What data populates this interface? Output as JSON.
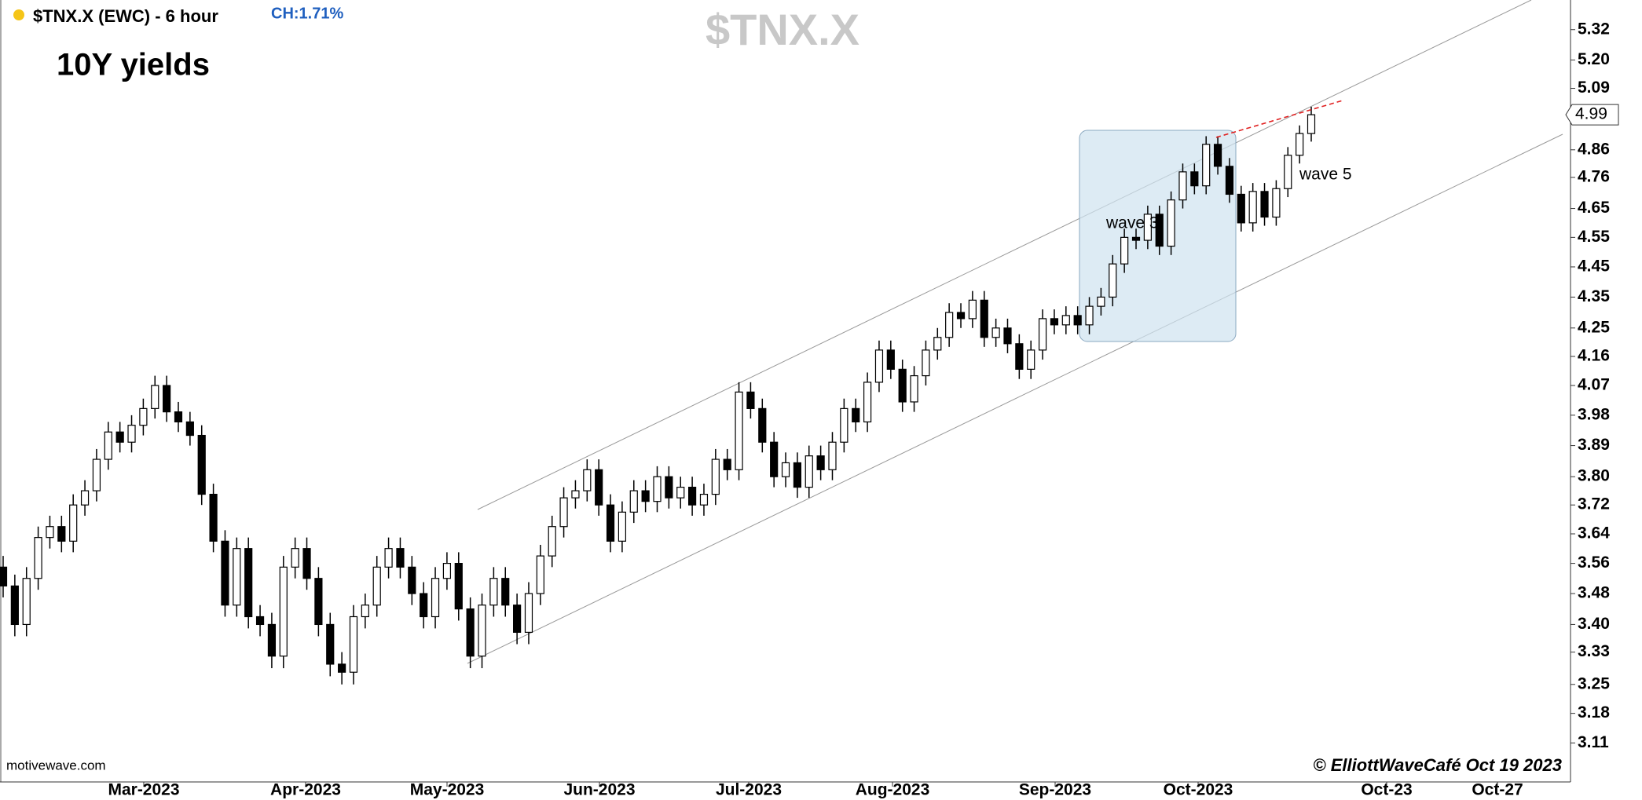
{
  "chart_data": {
    "type": "candlestick",
    "symbol": "$TNX.X (EWC) - 6 hour",
    "change": "CH:1.71%",
    "watermark": "$TNX.X",
    "title": "10Y yields",
    "annotations": [
      "wave 3",
      "wave 5"
    ],
    "source": "motivewave.com",
    "credit": "© ElliottWaveCafé Oct 19 2023",
    "last_price": 4.99,
    "xtick_labels": [
      "Mar-2023",
      "Apr-2023",
      "May-2023",
      "Jun-2023",
      "Jul-2023",
      "Aug-2023",
      "Sep-2023",
      "Oct-2023",
      "Oct-23",
      "Oct-27"
    ],
    "log_scale": true,
    "ylim": [
      3.02,
      5.44
    ],
    "yticks": [
      3.11,
      3.18,
      3.25,
      3.33,
      {
        "value": 3.4,
        "label": "3.40"
      },
      3.48,
      3.56,
      3.64,
      3.72,
      {
        "value": 3.8,
        "label": "3.80"
      },
      3.89,
      3.98,
      4.07,
      4.16,
      4.25,
      4.35,
      4.45,
      4.55,
      4.65,
      4.76,
      4.86,
      5.09,
      {
        "value": 5.2,
        "label": "5.20"
      },
      5.32
    ],
    "up_color": "#ffffff",
    "down_color": "#000000",
    "open": [
      3.55,
      3.5,
      3.4,
      3.52,
      3.63,
      3.66,
      3.62,
      3.72,
      3.76,
      3.85,
      3.93,
      3.9,
      3.95,
      4.0,
      4.07,
      3.99,
      3.96,
      3.92,
      3.75,
      3.62,
      3.45,
      3.6,
      3.42,
      3.4,
      3.32,
      3.55,
      3.6,
      3.52,
      3.4,
      3.3,
      3.28,
      3.42,
      3.45,
      3.55,
      3.6,
      3.55,
      3.48,
      3.42,
      3.52,
      3.56,
      3.44,
      3.32,
      3.45,
      3.52,
      3.45,
      3.38,
      3.48,
      3.58,
      3.66,
      3.74,
      3.76,
      3.82,
      3.72,
      3.62,
      3.7,
      3.76,
      3.73,
      3.8,
      3.74,
      3.77,
      3.72,
      3.75,
      3.85,
      3.82,
      4.05,
      4.0,
      3.9,
      3.8,
      3.84,
      3.77,
      3.86,
      3.82,
      3.9,
      4.0,
      3.96,
      4.08,
      4.18,
      4.12,
      4.02,
      4.1,
      4.18,
      4.22,
      4.3,
      4.28,
      4.34,
      4.22,
      4.25,
      4.2,
      4.12,
      4.18,
      4.28,
      4.26,
      4.29,
      4.26,
      4.32,
      4.35,
      4.46,
      4.55,
      4.54,
      4.63,
      4.52,
      4.68,
      4.78,
      4.73,
      4.88,
      4.8,
      4.7,
      4.6,
      4.71,
      4.62,
      4.72,
      4.84,
      4.92
    ],
    "high": [
      3.58,
      3.53,
      3.55,
      3.66,
      3.69,
      3.69,
      3.75,
      3.79,
      3.88,
      3.96,
      3.96,
      3.98,
      4.03,
      4.1,
      4.1,
      4.02,
      3.99,
      3.95,
      3.78,
      3.65,
      3.63,
      3.63,
      3.45,
      3.43,
      3.58,
      3.63,
      3.63,
      3.55,
      3.43,
      3.33,
      3.45,
      3.48,
      3.58,
      3.63,
      3.63,
      3.58,
      3.51,
      3.55,
      3.59,
      3.59,
      3.47,
      3.48,
      3.55,
      3.55,
      3.48,
      3.51,
      3.61,
      3.69,
      3.77,
      3.79,
      3.85,
      3.85,
      3.75,
      3.73,
      3.79,
      3.79,
      3.83,
      3.83,
      3.8,
      3.8,
      3.78,
      3.88,
      3.88,
      4.08,
      4.08,
      4.03,
      3.93,
      3.87,
      3.87,
      3.89,
      3.89,
      3.93,
      4.03,
      4.03,
      4.11,
      4.21,
      4.21,
      4.15,
      4.13,
      4.21,
      4.25,
      4.33,
      4.33,
      4.37,
      4.37,
      4.28,
      4.28,
      4.23,
      4.21,
      4.31,
      4.31,
      4.32,
      4.32,
      4.35,
      4.38,
      4.49,
      4.58,
      4.58,
      4.66,
      4.66,
      4.71,
      4.81,
      4.81,
      4.91,
      4.91,
      4.83,
      4.73,
      4.74,
      4.74,
      4.75,
      4.87,
      4.95,
      5.02
    ],
    "low": [
      3.47,
      3.37,
      3.37,
      3.49,
      3.6,
      3.59,
      3.59,
      3.69,
      3.73,
      3.82,
      3.87,
      3.87,
      3.92,
      3.97,
      3.96,
      3.93,
      3.89,
      3.72,
      3.59,
      3.42,
      3.42,
      3.39,
      3.37,
      3.29,
      3.29,
      3.52,
      3.49,
      3.37,
      3.27,
      3.25,
      3.25,
      3.39,
      3.42,
      3.52,
      3.52,
      3.45,
      3.39,
      3.39,
      3.49,
      3.41,
      3.29,
      3.29,
      3.42,
      3.42,
      3.35,
      3.35,
      3.45,
      3.55,
      3.63,
      3.71,
      3.73,
      3.69,
      3.59,
      3.59,
      3.67,
      3.7,
      3.7,
      3.71,
      3.71,
      3.69,
      3.69,
      3.72,
      3.79,
      3.79,
      3.97,
      3.87,
      3.77,
      3.77,
      3.74,
      3.74,
      3.79,
      3.79,
      3.87,
      3.93,
      3.93,
      4.05,
      4.09,
      3.99,
      3.99,
      4.07,
      4.15,
      4.19,
      4.25,
      4.25,
      4.19,
      4.19,
      4.17,
      4.09,
      4.09,
      4.15,
      4.23,
      4.23,
      4.23,
      4.23,
      4.29,
      4.32,
      4.43,
      4.51,
      4.51,
      4.49,
      4.49,
      4.65,
      4.7,
      4.7,
      4.77,
      4.67,
      4.57,
      4.57,
      4.59,
      4.59,
      4.69,
      4.81,
      4.89
    ],
    "close": [
      3.5,
      3.4,
      3.52,
      3.63,
      3.66,
      3.62,
      3.72,
      3.76,
      3.85,
      3.93,
      3.9,
      3.95,
      4.0,
      4.07,
      3.99,
      3.96,
      3.92,
      3.75,
      3.62,
      3.45,
      3.6,
      3.42,
      3.4,
      3.32,
      3.55,
      3.6,
      3.52,
      3.4,
      3.3,
      3.28,
      3.42,
      3.45,
      3.55,
      3.6,
      3.55,
      3.48,
      3.42,
      3.52,
      3.56,
      3.44,
      3.32,
      3.45,
      3.52,
      3.45,
      3.38,
      3.48,
      3.58,
      3.66,
      3.74,
      3.76,
      3.82,
      3.72,
      3.62,
      3.7,
      3.76,
      3.73,
      3.8,
      3.74,
      3.77,
      3.72,
      3.75,
      3.85,
      3.82,
      4.05,
      4.0,
      3.9,
      3.8,
      3.84,
      3.77,
      3.86,
      3.82,
      3.9,
      4.0,
      3.96,
      4.08,
      4.18,
      4.12,
      4.02,
      4.1,
      4.18,
      4.22,
      4.3,
      4.28,
      4.34,
      4.22,
      4.25,
      4.2,
      4.12,
      4.18,
      4.28,
      4.26,
      4.29,
      4.26,
      4.32,
      4.35,
      4.46,
      4.55,
      4.54,
      4.63,
      4.52,
      4.68,
      4.78,
      4.73,
      4.88,
      4.8,
      4.7,
      4.6,
      4.71,
      4.62,
      4.72,
      4.84,
      4.92,
      4.99
    ]
  }
}
